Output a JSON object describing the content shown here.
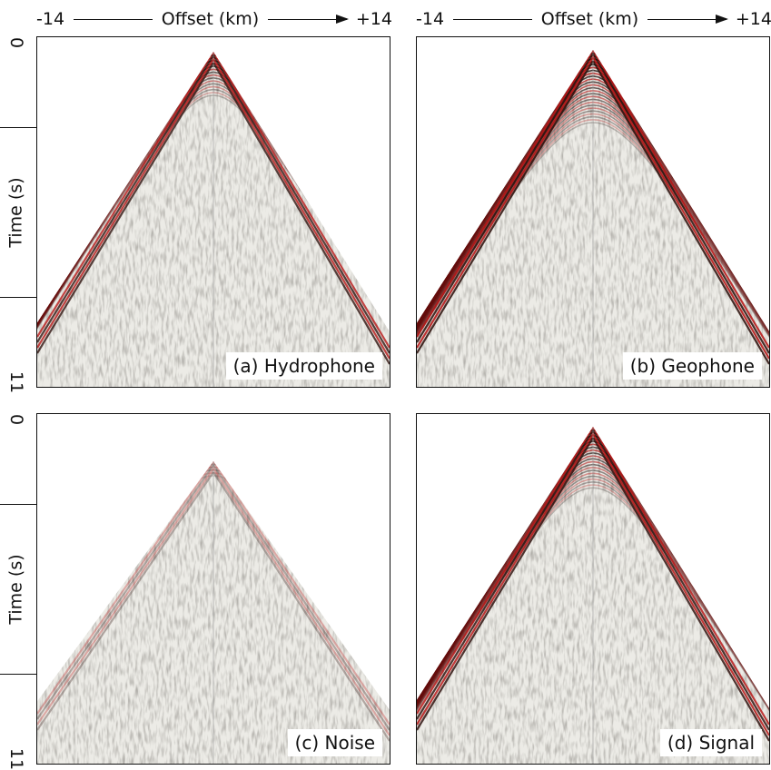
{
  "top_axes": [
    {
      "left": "-14",
      "label": "Offset (km)",
      "right": "+14"
    },
    {
      "left": "-14",
      "label": "Offset (km)",
      "right": "+14"
    }
  ],
  "left_axes": [
    {
      "top": "0",
      "label": "Time (s)",
      "bottom": "11"
    },
    {
      "top": "0",
      "label": "Time (s)",
      "bottom": "11"
    }
  ],
  "panels": [
    {
      "label": "(a) Hydrophone"
    },
    {
      "label": "(b) Geophone"
    },
    {
      "label": "(c) Noise"
    },
    {
      "label": "(d) Signal"
    }
  ]
}
